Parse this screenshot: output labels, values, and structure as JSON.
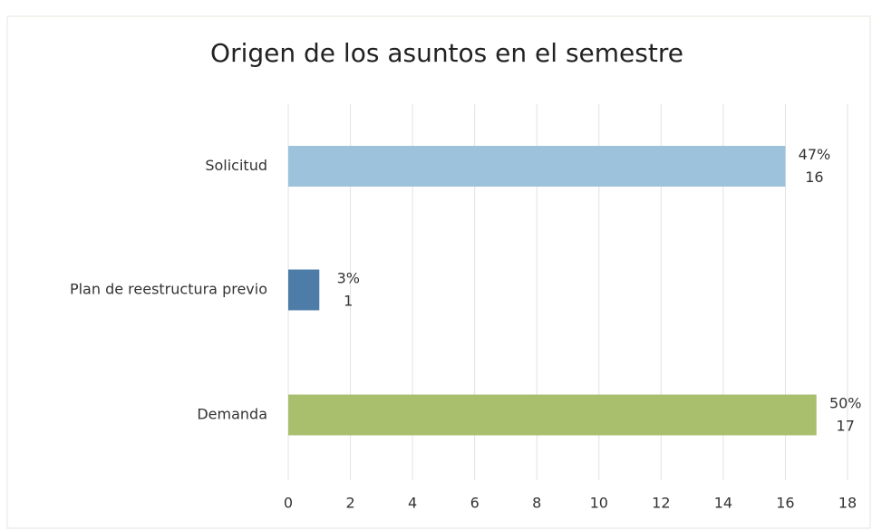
{
  "chart_data": {
    "type": "bar",
    "orientation": "horizontal",
    "title": "Origen de los asuntos en el semestre",
    "categories": [
      "Solicitud",
      "Plan de reestructura previo",
      "Demanda"
    ],
    "values": [
      16,
      1,
      17
    ],
    "percent_labels": [
      "47%",
      "3%",
      "50%"
    ],
    "colors": [
      "#9dc3dc",
      "#4d7ca8",
      "#a9bf6e"
    ],
    "xlim": [
      0,
      18
    ],
    "xticks": [
      0,
      2,
      4,
      6,
      8,
      10,
      12,
      14,
      16,
      18
    ],
    "grid": true
  }
}
